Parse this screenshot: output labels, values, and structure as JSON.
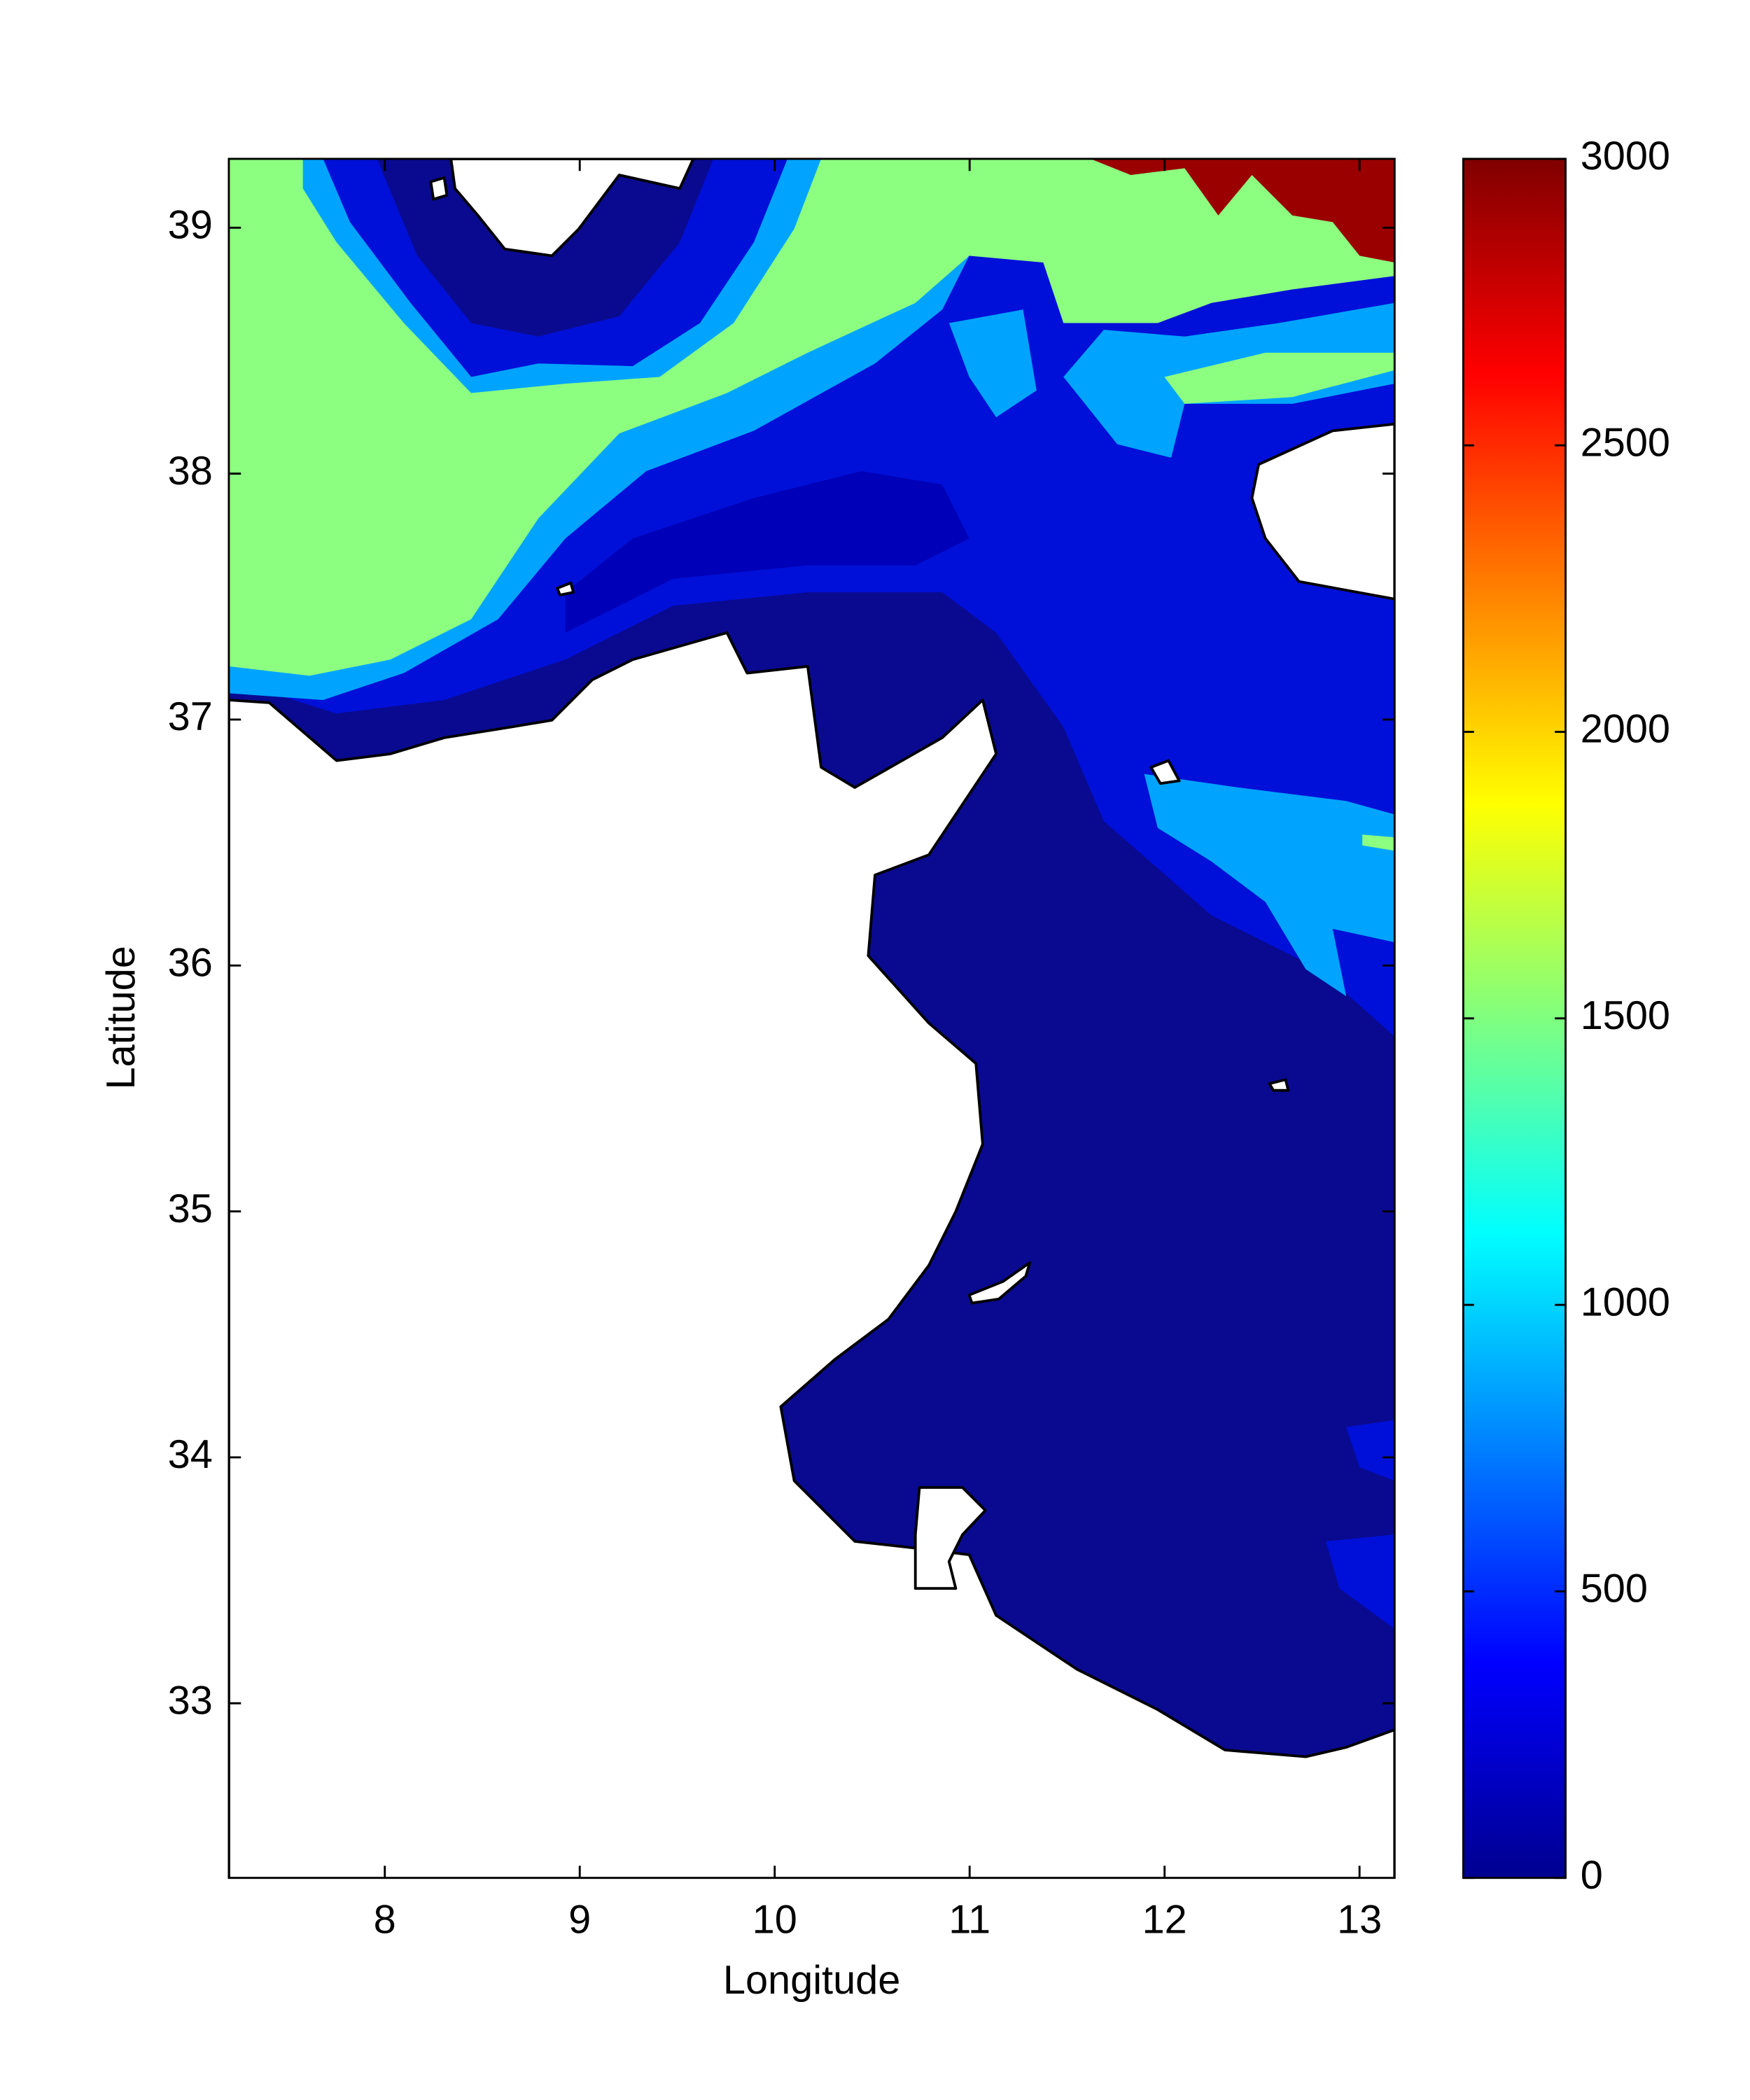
{
  "chart_data": {
    "type": "contour",
    "xlabel": "Longitude",
    "ylabel": "Latitude",
    "xlim": [
      7.2,
      13.18
    ],
    "ylim": [
      32.29,
      39.28
    ],
    "xticks": [
      8,
      9,
      10,
      11,
      12,
      13
    ],
    "yticks": [
      33,
      34,
      35,
      36,
      37,
      38,
      39
    ],
    "colorbar": {
      "lim": [
        0,
        3000
      ],
      "ticks": [
        0,
        500,
        1000,
        1500,
        2000,
        2500,
        3000
      ]
    }
  }
}
